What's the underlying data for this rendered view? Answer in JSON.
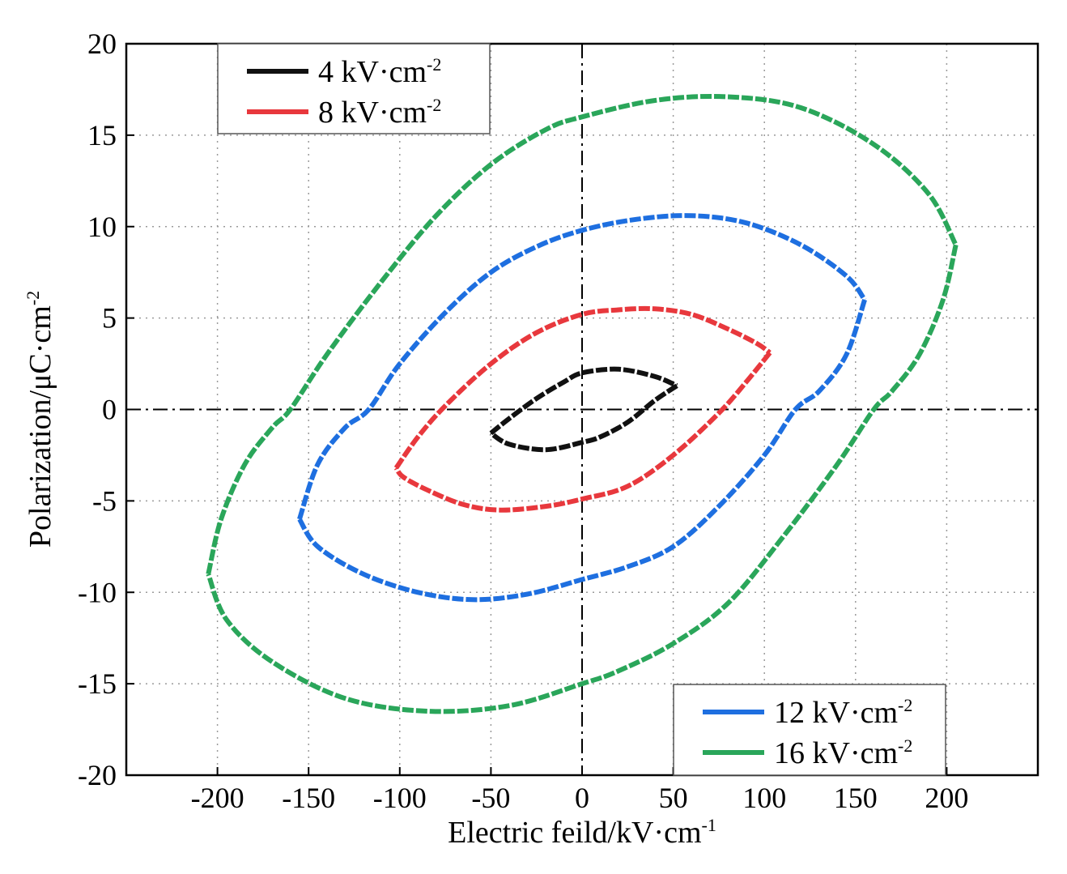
{
  "chart_data": {
    "type": "line",
    "title": "",
    "xlabel": "Electric feild/kV·cm",
    "xlabel_superscript": "-1",
    "ylabel": "Polarization/μC·cm",
    "ylabel_superscript": "-2",
    "xlim": [
      -250,
      250
    ],
    "ylim": [
      -20,
      20
    ],
    "xticks": [
      -200,
      -150,
      -100,
      -50,
      0,
      50,
      100,
      150,
      200
    ],
    "yticks": [
      -20,
      -15,
      -10,
      -5,
      0,
      5,
      10,
      15,
      20
    ],
    "grid": true,
    "legend_groups": [
      {
        "placement": "top-left",
        "series_index": [
          0,
          1
        ]
      },
      {
        "placement": "bottom-right",
        "series_index": [
          2,
          3
        ]
      }
    ],
    "series": [
      {
        "name": "4 kV·cm",
        "name_superscript": "-2",
        "color": "#111111",
        "upper_branch": [
          [
            -50,
            -1.3
          ],
          [
            -40,
            -0.5
          ],
          [
            -25,
            0.6
          ],
          [
            -10,
            1.5
          ],
          [
            0,
            2.0
          ],
          [
            20,
            2.2
          ],
          [
            40,
            1.8
          ],
          [
            52,
            1.3
          ]
        ],
        "lower_branch": [
          [
            52,
            1.3
          ],
          [
            40,
            0.5
          ],
          [
            25,
            -0.7
          ],
          [
            10,
            -1.5
          ],
          [
            0,
            -1.8
          ],
          [
            -20,
            -2.2
          ],
          [
            -40,
            -1.9
          ],
          [
            -50,
            -1.3
          ]
        ]
      },
      {
        "name": "8 kV·cm",
        "name_superscript": "-2",
        "color": "#e8383d",
        "upper_branch": [
          [
            -102,
            -3.2
          ],
          [
            -90,
            -1.5
          ],
          [
            -75,
            0.2
          ],
          [
            -50,
            2.5
          ],
          [
            -25,
            4.2
          ],
          [
            0,
            5.2
          ],
          [
            20,
            5.45
          ],
          [
            40,
            5.5
          ],
          [
            60,
            5.2
          ],
          [
            80,
            4.4
          ],
          [
            96,
            3.6
          ],
          [
            103,
            3.1
          ]
        ],
        "lower_branch": [
          [
            103,
            3.1
          ],
          [
            90,
            1.5
          ],
          [
            75,
            -0.2
          ],
          [
            50,
            -2.5
          ],
          [
            25,
            -4.2
          ],
          [
            0,
            -4.9
          ],
          [
            -20,
            -5.3
          ],
          [
            -45,
            -5.5
          ],
          [
            -65,
            -5.2
          ],
          [
            -85,
            -4.4
          ],
          [
            -98,
            -3.7
          ],
          [
            -102,
            -3.2
          ]
        ]
      },
      {
        "name": "12 kV·cm",
        "name_superscript": "-2",
        "color": "#1e6fe0",
        "upper_branch": [
          [
            -155,
            -6.0
          ],
          [
            -145,
            -3.0
          ],
          [
            -130,
            -1.0
          ],
          [
            -117,
            0.0
          ],
          [
            -100,
            2.5
          ],
          [
            -75,
            5.3
          ],
          [
            -50,
            7.5
          ],
          [
            -25,
            8.9
          ],
          [
            0,
            9.8
          ],
          [
            30,
            10.4
          ],
          [
            60,
            10.6
          ],
          [
            90,
            10.2
          ],
          [
            120,
            9.0
          ],
          [
            145,
            7.3
          ],
          [
            155,
            6.0
          ]
        ],
        "lower_branch": [
          [
            155,
            6.0
          ],
          [
            145,
            3.0
          ],
          [
            130,
            1.0
          ],
          [
            117,
            0.0
          ],
          [
            100,
            -2.5
          ],
          [
            75,
            -5.3
          ],
          [
            50,
            -7.5
          ],
          [
            25,
            -8.6
          ],
          [
            0,
            -9.3
          ],
          [
            -30,
            -10.1
          ],
          [
            -60,
            -10.4
          ],
          [
            -90,
            -10.0
          ],
          [
            -120,
            -9.0
          ],
          [
            -145,
            -7.5
          ],
          [
            -155,
            -6.0
          ]
        ]
      },
      {
        "name": "16 kV·cm",
        "name_superscript": "-2",
        "color": "#2aa65a",
        "upper_branch": [
          [
            -205,
            -9.0
          ],
          [
            -198,
            -6.0
          ],
          [
            -185,
            -3.0
          ],
          [
            -170,
            -1.0
          ],
          [
            -160,
            0.0
          ],
          [
            -140,
            3.0
          ],
          [
            -110,
            7.0
          ],
          [
            -80,
            10.6
          ],
          [
            -50,
            13.4
          ],
          [
            -20,
            15.3
          ],
          [
            0,
            16.0
          ],
          [
            40,
            16.9
          ],
          [
            80,
            17.1
          ],
          [
            120,
            16.5
          ],
          [
            160,
            14.5
          ],
          [
            190,
            11.8
          ],
          [
            205,
            9.0
          ]
        ],
        "lower_branch": [
          [
            205,
            9.0
          ],
          [
            198,
            6.0
          ],
          [
            185,
            3.0
          ],
          [
            170,
            1.0
          ],
          [
            160,
            0.0
          ],
          [
            140,
            -3.0
          ],
          [
            110,
            -7.0
          ],
          [
            80,
            -10.6
          ],
          [
            50,
            -12.8
          ],
          [
            20,
            -14.3
          ],
          [
            0,
            -15.0
          ],
          [
            -40,
            -16.2
          ],
          [
            -85,
            -16.5
          ],
          [
            -130,
            -15.8
          ],
          [
            -170,
            -13.8
          ],
          [
            -195,
            -11.5
          ],
          [
            -205,
            -9.0
          ]
        ]
      }
    ]
  }
}
